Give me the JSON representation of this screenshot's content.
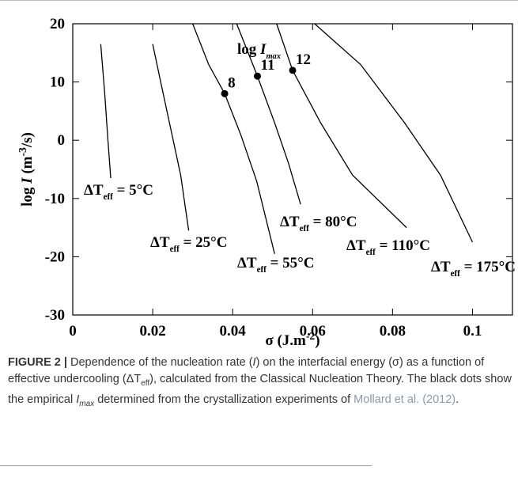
{
  "chart_data": {
    "type": "line",
    "xlim": [
      0,
      0.11
    ],
    "ylim": [
      -30,
      20
    ],
    "xticks": [
      0,
      0.02,
      0.04,
      0.06,
      0.08,
      0.1
    ],
    "yticks": [
      -30,
      -20,
      -10,
      0,
      10,
      20
    ],
    "color": "#000000",
    "xlabel": [
      {
        "text": "σ (J.m",
        "style": "plain"
      },
      {
        "text": "-2",
        "style": "sup"
      },
      {
        "text": ")",
        "style": "plain"
      }
    ],
    "ylabel": [
      {
        "text": "log ",
        "style": "plain"
      },
      {
        "text": "I",
        "style": "italic"
      },
      {
        "text": " (m",
        "style": "plain"
      },
      {
        "text": "-3",
        "style": "sup"
      },
      {
        "text": "/s)",
        "style": "plain"
      }
    ],
    "annotation": [
      {
        "text": "log ",
        "style": "plain"
      },
      {
        "text": "I",
        "style": "italic"
      },
      {
        "text": "max",
        "style": "sub-italic"
      }
    ],
    "series": [
      {
        "label": [
          {
            "text": "ΔT",
            "style": "plain"
          },
          {
            "text": "eff",
            "style": "sub"
          },
          {
            "text": " = 5°C",
            "style": "plain"
          }
        ],
        "x": [
          0.007,
          0.008,
          0.0088,
          0.0095
        ],
        "values": [
          16.5,
          8,
          0,
          -6.5
        ]
      },
      {
        "label": [
          {
            "text": "ΔT",
            "style": "plain"
          },
          {
            "text": "eff",
            "style": "sub"
          },
          {
            "text": " = 25°C",
            "style": "plain"
          }
        ],
        "x": [
          0.02,
          0.022,
          0.0245,
          0.027,
          0.029
        ],
        "values": [
          16.5,
          10,
          2,
          -6,
          -15.5
        ]
      },
      {
        "label": [
          {
            "text": "ΔT",
            "style": "plain"
          },
          {
            "text": "eff",
            "style": "sub"
          },
          {
            "text": " = 55°C",
            "style": "plain"
          }
        ],
        "x": [
          0.03,
          0.034,
          0.038,
          0.042,
          0.046,
          0.0505
        ],
        "values": [
          20,
          13,
          8,
          1,
          -7,
          -19.5
        ]
      },
      {
        "label": [
          {
            "text": "ΔT",
            "style": "plain"
          },
          {
            "text": "eff",
            "style": "sub"
          },
          {
            "text": " = 80°C",
            "style": "plain"
          }
        ],
        "x": [
          0.041,
          0.0462,
          0.0505,
          0.054,
          0.057
        ],
        "values": [
          20,
          11,
          3,
          -4,
          -11
        ]
      },
      {
        "label": [
          {
            "text": "ΔT",
            "style": "plain"
          },
          {
            "text": "eff",
            "style": "sub"
          },
          {
            "text": " = 110°C",
            "style": "plain"
          }
        ],
        "x": [
          0.051,
          0.055,
          0.062,
          0.07,
          0.0835
        ],
        "values": [
          20,
          12,
          3,
          -6,
          -15
        ]
      },
      {
        "label": [
          {
            "text": "ΔT",
            "style": "plain"
          },
          {
            "text": "eff",
            "style": "sub"
          },
          {
            "text": " = 175°C",
            "style": "plain"
          }
        ],
        "x": [
          0.0605,
          0.072,
          0.083,
          0.092,
          0.1
        ],
        "values": [
          20,
          13,
          3,
          -6,
          -17.5
        ]
      }
    ],
    "points": {
      "labels": [
        "8",
        "11",
        "12"
      ],
      "x": [
        0.038,
        0.0462,
        0.055
      ],
      "values": [
        8,
        11,
        12
      ],
      "color": "#000000"
    }
  },
  "caption": {
    "label": "FIGURE 2 |",
    "segments": [
      {
        "text": " Dependence of the nucleation rate (",
        "style": "plain"
      },
      {
        "text": "I",
        "style": "italic"
      },
      {
        "text": ") on the interfacial energy (σ) as a function of effective undercooling (ΔT",
        "style": "plain"
      },
      {
        "text": "eff",
        "style": "sub"
      },
      {
        "text": "), calculated from the Classical Nucleation Theory. The black dots show the empirical ",
        "style": "plain"
      },
      {
        "text": "I",
        "style": "italic"
      },
      {
        "text": "max",
        "style": "sub-italic"
      },
      {
        "text": " determined from the crystallization experiments of ",
        "style": "plain"
      },
      {
        "text": "Mollard et al. (2012)",
        "style": "link"
      },
      {
        "text": ".",
        "style": "plain"
      }
    ]
  }
}
